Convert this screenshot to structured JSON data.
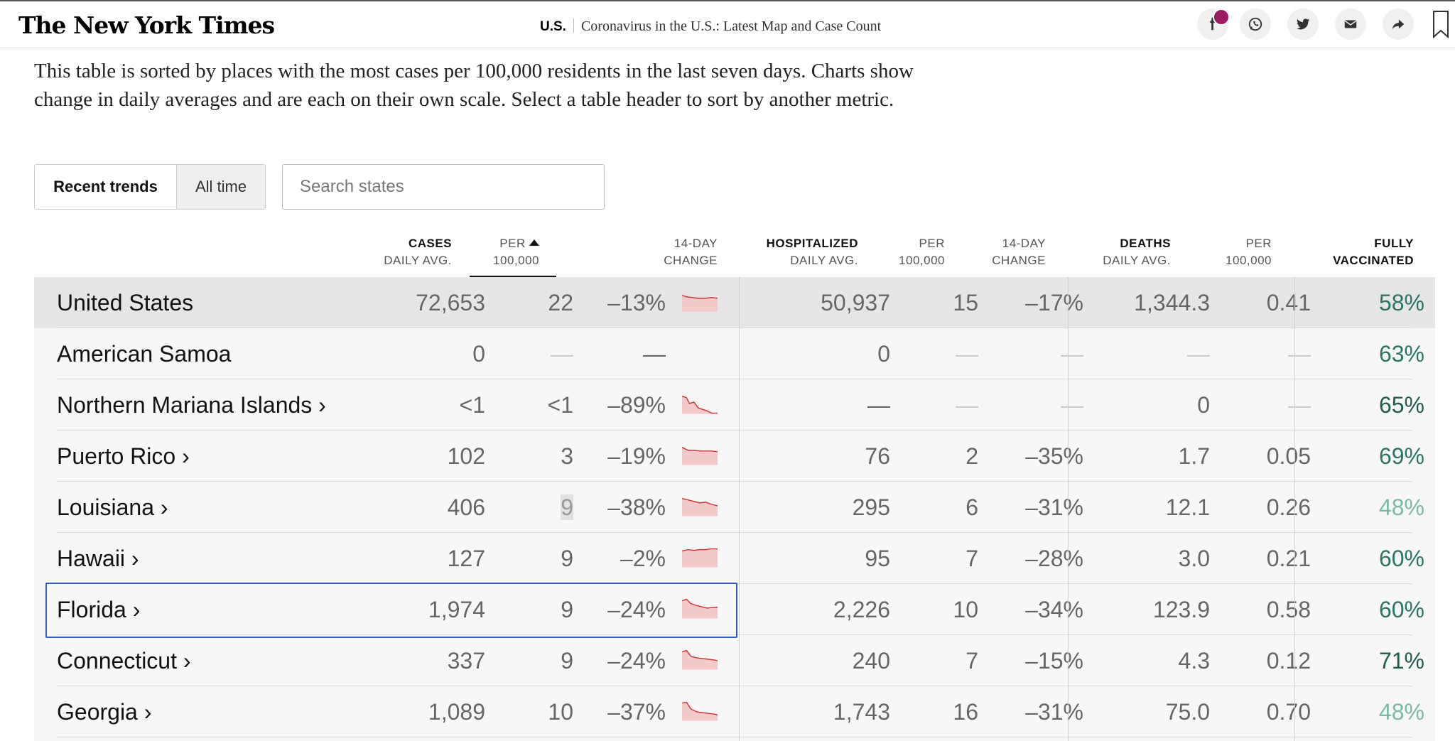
{
  "header": {
    "logo": "The New York Times",
    "section": "U.S.",
    "article_title": "Coronavirus in the U.S.: Latest Map and Case Count",
    "share_icons": [
      "facebook-icon",
      "whatsapp-icon",
      "twitter-icon",
      "email-icon",
      "share-arrow-icon",
      "bookmark-icon"
    ]
  },
  "intro": "This table is sorted by places with the most cases per 100,000 residents in the last seven days. Charts show change in daily averages and are each on their own scale. Select a table header to sort by another metric.",
  "controls": {
    "toggle_recent": "Recent trends",
    "toggle_all": "All time",
    "search_placeholder": "Search states"
  },
  "columns": {
    "cases_1": "CASES",
    "cases_2": "DAILY AVG.",
    "per_1": "PER",
    "per_2": "100,000",
    "change_1": "14-DAY",
    "change_2": "CHANGE",
    "hosp_1": "HOSPITALIZED",
    "hosp_2": "DAILY AVG.",
    "hper_1": "PER",
    "hper_2": "100,000",
    "hchange_1": "14-DAY",
    "hchange_2": "CHANGE",
    "deaths_1": "DEATHS",
    "deaths_2": "DAILY AVG.",
    "dper_1": "PER",
    "dper_2": "100,000",
    "vax_1": "FULLY",
    "vax_2": "VACCINATED"
  },
  "rows": [
    {
      "name": "United States",
      "cases": "72,653",
      "per": "22",
      "change": "–13%",
      "hosp": "50,937",
      "hper": "15",
      "hchange": "–17%",
      "deaths": "1,344.3",
      "dper": "0.41",
      "vax": "58%"
    },
    {
      "name": "American Samoa",
      "cases": "0",
      "per": "—",
      "change": "—",
      "hosp": "0",
      "hper": "—",
      "hchange": "—",
      "deaths": "—",
      "dper": "—",
      "vax": "63%"
    },
    {
      "name": "Northern Mariana Islands ›",
      "cases": "<1",
      "per": "<1",
      "change": "–89%",
      "hosp": "—",
      "hper": "—",
      "hchange": "—",
      "deaths": "0",
      "dper": "—",
      "vax": "65%"
    },
    {
      "name": "Puerto Rico ›",
      "cases": "102",
      "per": "3",
      "change": "–19%",
      "hosp": "76",
      "hper": "2",
      "hchange": "–35%",
      "deaths": "1.7",
      "dper": "0.05",
      "vax": "69%"
    },
    {
      "name": "Louisiana ›",
      "cases": "406",
      "per": "9",
      "change": "–38%",
      "hosp": "295",
      "hper": "6",
      "hchange": "–31%",
      "deaths": "12.1",
      "dper": "0.26",
      "vax": "48%"
    },
    {
      "name": "Hawaii ›",
      "cases": "127",
      "per": "9",
      "change": "–2%",
      "hosp": "95",
      "hper": "7",
      "hchange": "–28%",
      "deaths": "3.0",
      "dper": "0.21",
      "vax": "60%"
    },
    {
      "name": "Florida ›",
      "cases": "1,974",
      "per": "9",
      "change": "–24%",
      "hosp": "2,226",
      "hper": "10",
      "hchange": "–34%",
      "deaths": "123.9",
      "dper": "0.58",
      "vax": "60%"
    },
    {
      "name": "Connecticut ›",
      "cases": "337",
      "per": "9",
      "change": "–24%",
      "hosp": "240",
      "hper": "7",
      "hchange": "–15%",
      "deaths": "4.3",
      "dper": "0.12",
      "vax": "71%"
    },
    {
      "name": "Georgia ›",
      "cases": "1,089",
      "per": "10",
      "change": "–37%",
      "hosp": "1,743",
      "hper": "16",
      "hchange": "–31%",
      "deaths": "75.0",
      "dper": "0.70",
      "vax": "48%"
    }
  ],
  "colors": {
    "accent_red": "#d03636",
    "spark_fill": "#f4c9c9",
    "vax_green": "#2a7563",
    "selection_blue": "#2f5fb6"
  }
}
